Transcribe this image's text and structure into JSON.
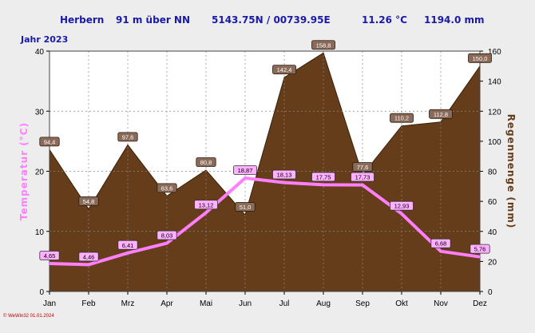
{
  "header": {
    "station": "Herbern",
    "altitude": "91 m über NN",
    "coords": "5143.75N / 00739.95E",
    "mean_temp": "11.26 °C",
    "total_precip": "1194.0 mm"
  },
  "year_label": "Jahr  2023",
  "footer": "© WeWin32  01.01.2024",
  "colors": {
    "precip_fill": "#663d1a",
    "temp_line": "#ff7fff",
    "header_text": "#1a1aa8",
    "plot_bg": "#ffffff",
    "page_bg": "#ededed"
  },
  "chart_data": {
    "type": "line+area",
    "title": "",
    "categories": [
      "Jan",
      "Feb",
      "Mrz",
      "Apr",
      "Mai",
      "Jun",
      "Jul",
      "Aug",
      "Sep",
      "Okt",
      "Nov",
      "Dez"
    ],
    "y_left": {
      "label": "Temperatur  (°C)",
      "min": 0,
      "max": 40,
      "ticks": [
        0,
        10,
        20,
        30,
        40
      ]
    },
    "y_right": {
      "label": "Regenmenge  (mm)",
      "min": 0,
      "max": 160,
      "ticks": [
        0,
        20,
        40,
        60,
        80,
        100,
        120,
        140,
        160
      ]
    },
    "grid": true,
    "series": [
      {
        "name": "Temperatur",
        "kind": "line",
        "axis": "left",
        "values": [
          4.65,
          4.46,
          6.41,
          8.03,
          13.12,
          18.87,
          18.13,
          17.75,
          17.73,
          12.93,
          6.68,
          5.76
        ],
        "labels": [
          "4,65",
          "4,46",
          "6,41",
          "8,03",
          "13,12",
          "18,87",
          "18,13",
          "17,75",
          "17,73",
          "12,93",
          "6,68",
          "5,76"
        ]
      },
      {
        "name": "Regenmenge",
        "kind": "area",
        "axis": "right",
        "values": [
          94.4,
          54.8,
          97.6,
          63.6,
          80.8,
          51.0,
          142.4,
          158.8,
          77.6,
          110.2,
          112.8,
          150.0
        ],
        "labels": [
          "94,4",
          "54,8",
          "97,6",
          "63,6",
          "80,8",
          "51,0",
          "142,4",
          "158,8",
          "77,6",
          "110,2",
          "112,8",
          "150,0"
        ]
      }
    ]
  }
}
